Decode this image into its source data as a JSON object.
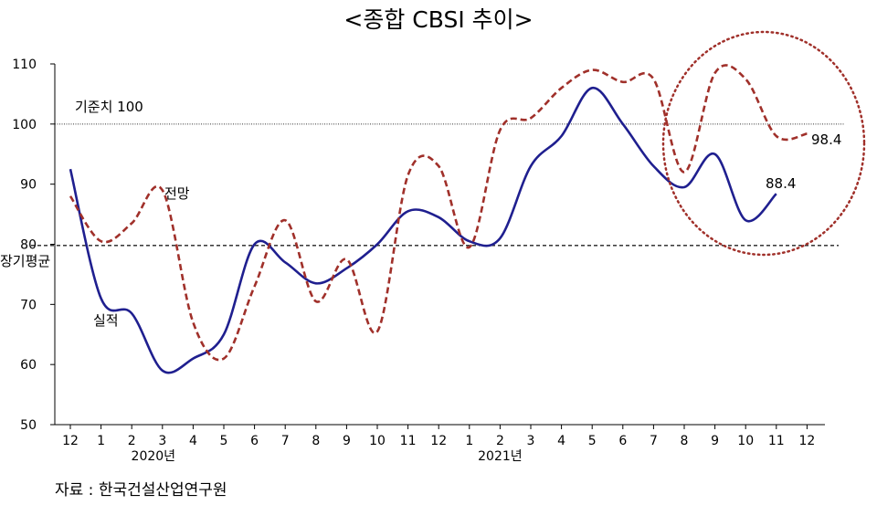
{
  "chart_data": {
    "type": "line",
    "title": "<종합 CBSI 추이>",
    "x": [
      "12",
      "1",
      "2",
      "3",
      "4",
      "5",
      "6",
      "7",
      "8",
      "9",
      "10",
      "11",
      "12",
      "1",
      "2",
      "3",
      "4",
      "5",
      "6",
      "7",
      "8",
      "9",
      "10",
      "11",
      "12"
    ],
    "year_labels": [
      "2020년",
      "2021년"
    ],
    "y_ticks": [
      50,
      60,
      70,
      80,
      90,
      100,
      110
    ],
    "ylim": [
      50,
      110
    ],
    "series": [
      {
        "name": "실적",
        "color": "#1f1f8f",
        "style": "solid",
        "values": [
          92.5,
          71,
          68.5,
          59,
          61,
          65,
          80,
          77,
          73.5,
          76,
          80,
          85.5,
          84.5,
          80.5,
          81,
          93,
          98,
          106,
          100,
          93,
          89.5,
          95,
          84,
          88.4,
          null
        ]
      },
      {
        "name": "전망",
        "color": "#a0302a",
        "style": "dashed",
        "values": [
          88,
          80.5,
          83.5,
          89,
          67,
          61,
          73,
          84,
          70.5,
          77.5,
          65.5,
          91.5,
          93,
          79.5,
          99,
          101,
          106,
          109,
          107,
          107.5,
          92,
          108.5,
          107.5,
          98,
          98.4
        ]
      }
    ],
    "reference_lines": [
      {
        "value": 100,
        "label": "기준치 100",
        "style": "dotted"
      },
      {
        "value": 79.8,
        "label": "장기평균",
        "style": "dashed"
      }
    ],
    "annotations": {
      "last_actual": "88.4",
      "last_forecast": "98.4"
    }
  },
  "source": "자료 : 한국건설산업연구원"
}
